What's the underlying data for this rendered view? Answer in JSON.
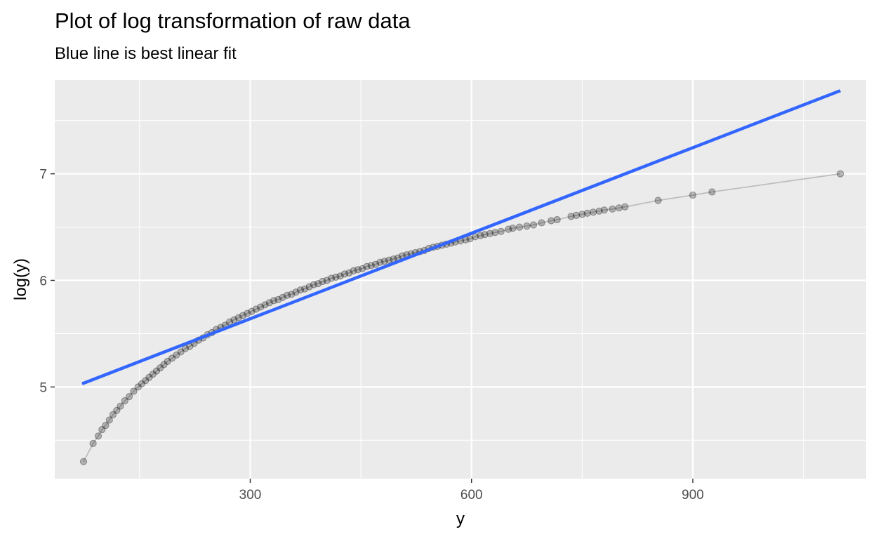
{
  "chart_data": {
    "type": "scatter",
    "title": "Plot of log transformation of raw data",
    "subtitle": "Blue line is best linear fit",
    "xlabel": "y",
    "ylabel": "log(y)",
    "xlim": [
      35,
      1135
    ],
    "ylim": [
      4.14,
      7.88
    ],
    "x_ticks": [
      300,
      600,
      900
    ],
    "x_tick_labels": [
      "300",
      "600",
      "900"
    ],
    "y_ticks": [
      5,
      6,
      7
    ],
    "y_tick_labels": [
      "5",
      "6",
      "7"
    ],
    "grid": true,
    "panel_background": "#ebebeb",
    "grid_color": "#ffffff",
    "points_color": "#000000",
    "points_opacity": 0.25,
    "connecting_line_color": "#bdbdbd",
    "fit_line_color": "#3366ff",
    "points": {
      "x": [
        74,
        87,
        94,
        99,
        104,
        109,
        114,
        119,
        124,
        130,
        136,
        142,
        148,
        153,
        158,
        163,
        168,
        173,
        178,
        183,
        188,
        194,
        200,
        206,
        212,
        218,
        224,
        230,
        236,
        242,
        248,
        254,
        260,
        266,
        272,
        278,
        284,
        290,
        296,
        302,
        308,
        314,
        320,
        326,
        332,
        338,
        344,
        350,
        356,
        362,
        368,
        374,
        380,
        386,
        392,
        398,
        404,
        410,
        416,
        422,
        428,
        434,
        440,
        446,
        452,
        458,
        464,
        470,
        476,
        482,
        488,
        494,
        500,
        506,
        512,
        518,
        524,
        530,
        536,
        542,
        548,
        554,
        560,
        566,
        572,
        578,
        585,
        592,
        598,
        605,
        612,
        618,
        625,
        632,
        640,
        650,
        656,
        665,
        675,
        684,
        695,
        708,
        716,
        735,
        742,
        750,
        757,
        765,
        773,
        780,
        791,
        800,
        808,
        853,
        900,
        926,
        1100
      ],
      "y": [
        4.3,
        4.47,
        4.54,
        4.6,
        4.64,
        4.69,
        4.74,
        4.78,
        4.82,
        4.87,
        4.91,
        4.96,
        5.0,
        5.03,
        5.06,
        5.09,
        5.12,
        5.15,
        5.18,
        5.21,
        5.24,
        5.27,
        5.3,
        5.33,
        5.36,
        5.38,
        5.41,
        5.44,
        5.46,
        5.49,
        5.51,
        5.54,
        5.56,
        5.58,
        5.61,
        5.63,
        5.65,
        5.67,
        5.69,
        5.71,
        5.73,
        5.75,
        5.77,
        5.79,
        5.81,
        5.82,
        5.84,
        5.86,
        5.87,
        5.89,
        5.91,
        5.92,
        5.94,
        5.96,
        5.97,
        5.99,
        6.0,
        6.02,
        6.03,
        6.04,
        6.06,
        6.07,
        6.09,
        6.1,
        6.11,
        6.13,
        6.14,
        6.15,
        6.17,
        6.18,
        6.19,
        6.2,
        6.21,
        6.23,
        6.24,
        6.25,
        6.26,
        6.27,
        6.28,
        6.3,
        6.31,
        6.32,
        6.33,
        6.34,
        6.35,
        6.36,
        6.37,
        6.38,
        6.39,
        6.41,
        6.42,
        6.43,
        6.44,
        6.45,
        6.46,
        6.48,
        6.49,
        6.5,
        6.51,
        6.52,
        6.54,
        6.56,
        6.57,
        6.6,
        6.61,
        6.62,
        6.63,
        6.64,
        6.65,
        6.66,
        6.67,
        6.68,
        6.69,
        6.75,
        6.8,
        6.83,
        7.0
      ]
    },
    "fit_line": {
      "x": [
        72,
        1100
      ],
      "y": [
        5.03,
        7.78
      ]
    }
  }
}
